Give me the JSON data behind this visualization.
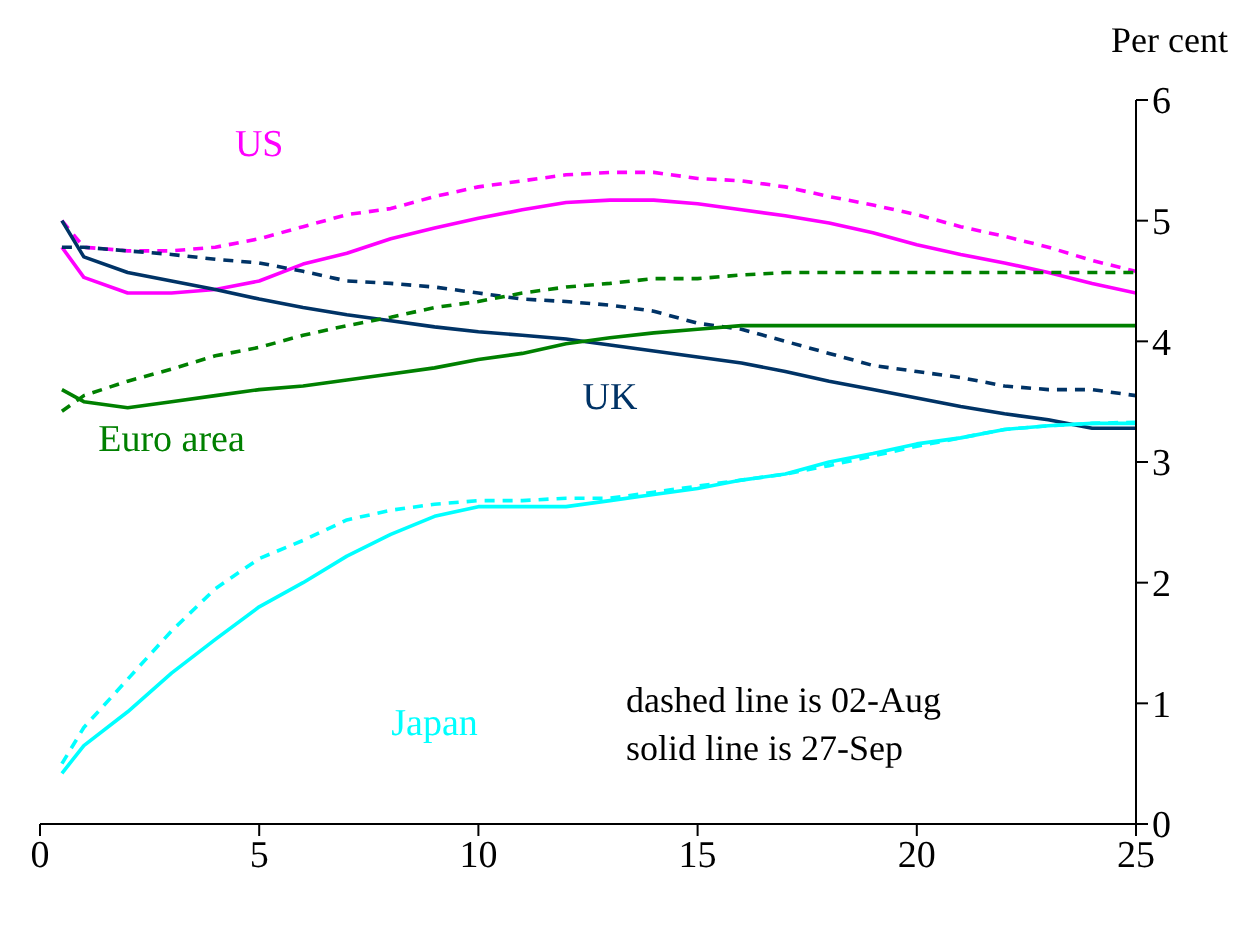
{
  "chart_data": {
    "type": "line",
    "ylabel": "Per cent",
    "x": [
      0.5,
      1,
      2,
      3,
      4,
      5,
      6,
      7,
      8,
      9,
      10,
      11,
      12,
      13,
      14,
      15,
      16,
      17,
      18,
      19,
      20,
      21,
      22,
      23,
      24,
      25
    ],
    "series": [
      {
        "name": "US",
        "color": "#ff00ff",
        "line_style": "solid",
        "values": [
          4.78,
          4.53,
          4.4,
          4.4,
          4.43,
          4.5,
          4.64,
          4.73,
          4.85,
          4.94,
          5.02,
          5.09,
          5.15,
          5.17,
          5.17,
          5.14,
          5.09,
          5.04,
          4.98,
          4.9,
          4.8,
          4.72,
          4.65,
          4.57,
          4.48,
          4.4
        ]
      },
      {
        "color": "#ff00ff",
        "line_style": "dashed",
        "values": [
          5.0,
          4.78,
          4.75,
          4.75,
          4.78,
          4.85,
          4.95,
          5.05,
          5.1,
          5.2,
          5.28,
          5.33,
          5.38,
          5.4,
          5.4,
          5.35,
          5.33,
          5.28,
          5.2,
          5.13,
          5.05,
          4.95,
          4.87,
          4.78,
          4.67,
          4.58
        ]
      },
      {
        "name": "UK",
        "color": "#003366",
        "line_style": "solid",
        "values": [
          5.0,
          4.7,
          4.57,
          4.5,
          4.43,
          4.35,
          4.28,
          4.22,
          4.17,
          4.12,
          4.08,
          4.05,
          4.02,
          3.97,
          3.92,
          3.87,
          3.82,
          3.75,
          3.67,
          3.6,
          3.53,
          3.46,
          3.4,
          3.35,
          3.28,
          3.28
        ]
      },
      {
        "color": "#003366",
        "line_style": "dashed",
        "values": [
          4.78,
          4.78,
          4.75,
          4.72,
          4.68,
          4.65,
          4.58,
          4.5,
          4.48,
          4.45,
          4.4,
          4.35,
          4.33,
          4.3,
          4.25,
          4.15,
          4.1,
          4.0,
          3.9,
          3.8,
          3.75,
          3.7,
          3.63,
          3.6,
          3.6,
          3.55
        ]
      },
      {
        "name": "Euro area",
        "color": "#008000",
        "line_style": "solid",
        "values": [
          3.6,
          3.5,
          3.45,
          3.5,
          3.55,
          3.6,
          3.63,
          3.68,
          3.73,
          3.78,
          3.85,
          3.9,
          3.98,
          4.03,
          4.07,
          4.1,
          4.13,
          4.13,
          4.13,
          4.13,
          4.13,
          4.13,
          4.13,
          4.13,
          4.13,
          4.13
        ]
      },
      {
        "color": "#008000",
        "line_style": "dashed",
        "values": [
          3.42,
          3.55,
          3.67,
          3.77,
          3.88,
          3.95,
          4.05,
          4.13,
          4.2,
          4.28,
          4.33,
          4.4,
          4.45,
          4.48,
          4.52,
          4.52,
          4.55,
          4.57,
          4.57,
          4.57,
          4.57,
          4.57,
          4.57,
          4.57,
          4.57,
          4.57
        ]
      },
      {
        "name": "Japan",
        "color": "#00ffff",
        "line_style": "solid",
        "values": [
          0.42,
          0.65,
          0.93,
          1.25,
          1.53,
          1.8,
          2.0,
          2.22,
          2.4,
          2.55,
          2.63,
          2.63,
          2.63,
          2.68,
          2.73,
          2.78,
          2.85,
          2.9,
          3.0,
          3.07,
          3.15,
          3.2,
          3.27,
          3.3,
          3.32,
          3.32
        ]
      },
      {
        "color": "#00ffff",
        "line_style": "dashed",
        "values": [
          0.5,
          0.8,
          1.2,
          1.6,
          1.95,
          2.2,
          2.35,
          2.52,
          2.6,
          2.65,
          2.68,
          2.68,
          2.7,
          2.7,
          2.75,
          2.8,
          2.85,
          2.9,
          2.97,
          3.05,
          3.13,
          3.2,
          3.27,
          3.3,
          3.32,
          3.33
        ]
      }
    ],
    "xlim": [
      0,
      25
    ],
    "xticks": [
      0,
      5,
      10,
      15,
      20,
      25
    ],
    "ylim": [
      0,
      6
    ],
    "yticks": [
      0,
      1,
      2,
      3,
      4,
      5,
      6
    ],
    "marker": "none",
    "grid": false,
    "legend": false,
    "annotations": [
      "dashed line is 02-Aug",
      "solid line is 27-Sep"
    ]
  }
}
